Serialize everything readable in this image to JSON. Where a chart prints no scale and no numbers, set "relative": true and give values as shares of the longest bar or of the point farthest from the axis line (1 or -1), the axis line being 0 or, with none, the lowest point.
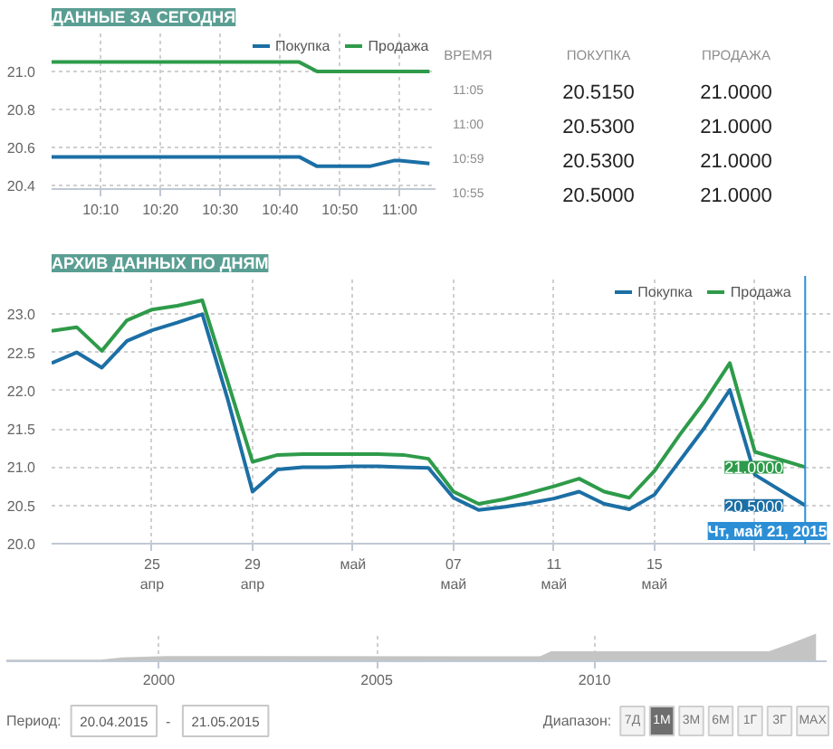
{
  "chart_data": [
    {
      "type": "line",
      "title": "ДАННЫЕ ЗА СЕГОДНЯ",
      "series": [
        {
          "name": "Покупка",
          "color": "#1c6fa5",
          "x": [
            10.03,
            10.72,
            10.77,
            10.9167,
            10.9833,
            11.0,
            11.0833
          ],
          "values": [
            20.55,
            20.55,
            20.5,
            20.5,
            20.53,
            20.53,
            20.515
          ]
        },
        {
          "name": "Продажа",
          "color": "#2e9b4a",
          "x": [
            10.03,
            10.72,
            10.77,
            11.0833
          ],
          "values": [
            21.05,
            21.05,
            21.0,
            21.0
          ]
        }
      ],
      "xlim": [
        10.03,
        11.1
      ],
      "xticks": [
        {
          "value": 10.1667,
          "label": "10:10"
        },
        {
          "value": 10.3333,
          "label": "10:20"
        },
        {
          "value": 10.5,
          "label": "10:30"
        },
        {
          "value": 10.6667,
          "label": "10:40"
        },
        {
          "value": 10.8333,
          "label": "10:50"
        },
        {
          "value": 11,
          "label": "11:00"
        }
      ],
      "ylim": [
        20.38,
        21.22
      ],
      "yticks": [
        20.4,
        20.6,
        20.8,
        {
          "value": 21,
          "label": "21.0"
        }
      ],
      "grid": true,
      "legend": "top right"
    },
    {
      "type": "other",
      "ylabel": "ВРЕМЯ",
      "categories": [
        "ПОКУПКА",
        "ПРОДАЖА"
      ],
      "y_categories": [
        "11:05",
        "11:00",
        "10:59",
        "10:55"
      ],
      "cell_labels": [
        [
          "20.5150",
          "21.0000"
        ],
        [
          "20.5300",
          "21.0000"
        ],
        [
          "20.5300",
          "21.0000"
        ],
        [
          "20.5000",
          "21.0000"
        ]
      ]
    },
    {
      "type": "line",
      "title": "АРХИВ ДАННЫХ ПО ДНЯМ",
      "x": [
        "2015-04-21",
        "2015-04-22",
        "2015-04-23",
        "2015-04-24",
        "2015-04-25",
        "2015-04-26",
        "2015-04-27",
        "2015-04-28",
        "2015-04-29",
        "2015-04-30",
        "2015-05-01",
        "2015-05-02",
        "2015-05-03",
        "2015-05-04",
        "2015-05-05",
        "2015-05-06",
        "2015-05-07",
        "2015-05-08",
        "2015-05-09",
        "2015-05-10",
        "2015-05-11",
        "2015-05-12",
        "2015-05-13",
        "2015-05-14",
        "2015-05-15",
        "2015-05-16",
        "2015-05-17",
        "2015-05-18",
        "2015-05-19",
        "2015-05-21"
      ],
      "series": [
        {
          "name": "Покупка",
          "color": "#1c6fa5",
          "values": [
            22.36,
            22.5,
            22.3,
            22.65,
            22.79,
            22.89,
            23.0,
            21.9,
            20.68,
            20.97,
            21.0,
            21.0,
            21.01,
            21.01,
            21.0,
            20.99,
            20.6,
            20.44,
            20.48,
            20.53,
            20.59,
            20.68,
            20.52,
            20.45,
            20.64,
            21.08,
            21.52,
            22.01,
            20.9,
            20.5
          ]
        },
        {
          "name": "Продажа",
          "color": "#2e9b4a",
          "values": [
            22.78,
            22.83,
            22.52,
            22.92,
            23.06,
            23.11,
            23.18,
            22.13,
            21.07,
            21.16,
            21.17,
            21.17,
            21.17,
            21.17,
            21.16,
            21.11,
            20.68,
            20.52,
            20.58,
            20.66,
            20.75,
            20.85,
            20.68,
            20.6,
            20.95,
            21.42,
            21.86,
            22.36,
            21.2,
            21.0
          ]
        }
      ],
      "xlim": [
        "2015-04-21",
        "2015-05-22"
      ],
      "xticks": [
        {
          "value": "2015-04-25",
          "label": "25\nапр"
        },
        {
          "value": "2015-04-29",
          "label": "29\nапр"
        },
        {
          "value": "2015-05-03",
          "label": "май"
        },
        {
          "value": "2015-05-07",
          "label": "07\nмай"
        },
        {
          "value": "2015-05-11",
          "label": "11\nмай"
        },
        {
          "value": "2015-05-15",
          "label": "15\nмай"
        },
        {
          "value": "2015-05-19",
          "label": null
        }
      ],
      "ylim": [
        20,
        23.5
      ],
      "yticks": [
        {
          "value": 20,
          "label": "20.0"
        },
        20.5,
        {
          "value": 21,
          "label": "21.0"
        },
        21.5,
        {
          "value": 22,
          "label": "22.0"
        },
        22.5,
        {
          "value": 23,
          "label": "23.0"
        }
      ],
      "grid": true,
      "legend": "top right",
      "ref_lines": [
        {
          "axis": "x",
          "value": "2015-05-21",
          "label": "Чт, май 21, 2015",
          "color": "#2c8fd6"
        }
      ],
      "annotations": [
        {
          "text": "21.0000",
          "x": "2015-05-21",
          "y": 21.0
        },
        {
          "text": "20.5000",
          "x": "2015-05-21",
          "y": 20.5
        }
      ]
    },
    {
      "type": "area",
      "relative": true,
      "color": "#c4c4c4",
      "x": [
        "1996-07",
        "1998-09",
        "1999-03",
        "2000-03",
        "2008-10",
        "2009-01",
        "2014-01",
        "2014-07",
        "2015-02"
      ],
      "values": [
        0.06,
        0.06,
        0.14,
        0.19,
        0.18,
        0.36,
        0.36,
        0.64,
        1
      ],
      "xlim": [
        "1996-07",
        "2015-05"
      ],
      "xticks": [
        {
          "value": "2000",
          "label": "2000"
        },
        {
          "value": "2005",
          "label": "2005"
        },
        {
          "value": "2010",
          "label": "2010"
        }
      ],
      "grid": "x"
    },
    {
      "type": "other",
      "annotations": [
        "Период:",
        "20.04.2015",
        "-",
        "21.05.2015",
        "Диапазон:",
        "7Д",
        "1М",
        "3М",
        "6М",
        "1Г",
        "3Г",
        "MAX"
      ]
    }
  ]
}
